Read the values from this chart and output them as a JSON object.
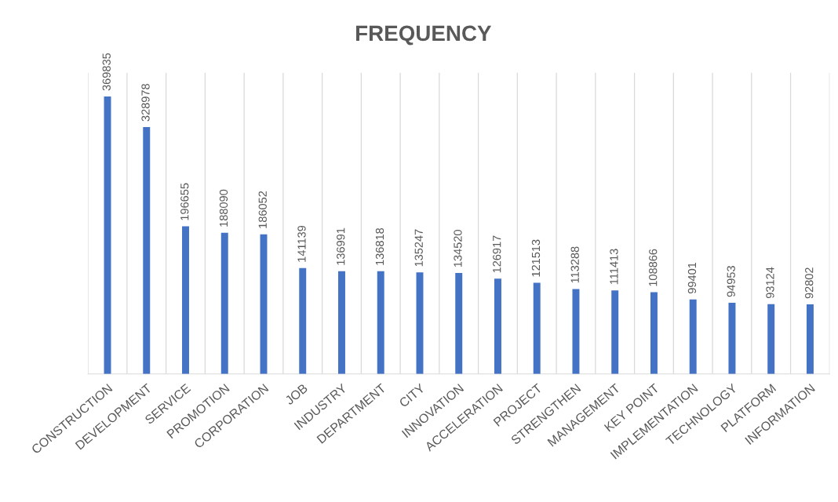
{
  "chart_data": {
    "type": "bar",
    "title": "FREQUENCY",
    "categories": [
      "CONSTRUCTION",
      "DEVELOPMENT",
      "SERVICE",
      "PROMOTION",
      "CORPORATION",
      "JOB",
      "INDUSTRY",
      "DEPARTMENT",
      "CITY",
      "INNOVATION",
      "ACCELERATION",
      "PROJECT",
      "STRENGTHEN",
      "MANAGEMENT",
      "KEY POINT",
      "IMPLEMENTATION",
      "TECHNOLOGY",
      "PLATFORM",
      "INFORMATION"
    ],
    "values": [
      369835,
      328978,
      196655,
      188090,
      186052,
      141139,
      136991,
      136818,
      135247,
      134520,
      126917,
      121513,
      113288,
      111413,
      108866,
      99401,
      94953,
      93124,
      92802
    ],
    "color": "#4472c4",
    "data_labels": true,
    "grid": "x"
  }
}
